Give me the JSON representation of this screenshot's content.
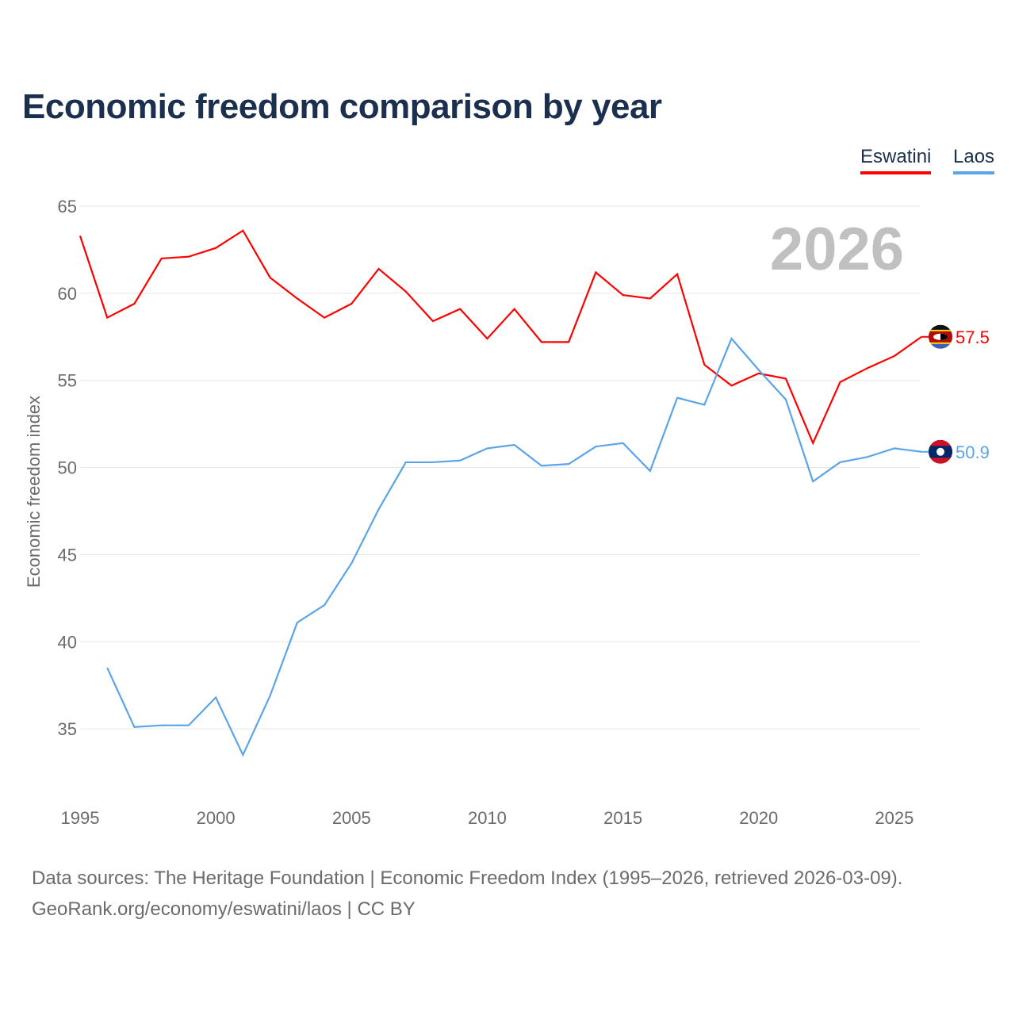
{
  "chart_data": {
    "type": "line",
    "title": "Economic freedom comparison by year",
    "xlabel": "",
    "ylabel": "Economic freedom index",
    "xlim": [
      1995,
      2026
    ],
    "ylim": [
      31,
      65
    ],
    "x_ticks": [
      1995,
      2000,
      2005,
      2010,
      2015,
      2020,
      2025
    ],
    "y_ticks": [
      35,
      40,
      45,
      50,
      55,
      60,
      65
    ],
    "grid": true,
    "legend_position": "top-right",
    "watermark_year": "2026",
    "series": [
      {
        "name": "Eswatini",
        "color": "#ff0000",
        "end_label": "57.5",
        "x": [
          1995,
          1996,
          1997,
          1998,
          1999,
          2000,
          2001,
          2002,
          2003,
          2004,
          2005,
          2006,
          2007,
          2008,
          2009,
          2010,
          2011,
          2012,
          2013,
          2014,
          2015,
          2016,
          2017,
          2018,
          2019,
          2020,
          2021,
          2022,
          2023,
          2024,
          2025,
          2026
        ],
        "values": [
          63.3,
          58.6,
          59.4,
          62.0,
          62.1,
          62.6,
          63.6,
          60.9,
          59.7,
          58.6,
          59.4,
          61.4,
          60.1,
          58.4,
          59.1,
          57.4,
          59.1,
          57.2,
          57.2,
          61.2,
          59.9,
          59.7,
          61.1,
          55.9,
          54.7,
          55.4,
          55.1,
          51.4,
          54.9,
          55.7,
          56.4,
          57.5
        ]
      },
      {
        "name": "Laos",
        "color": "#5ba4e8",
        "end_label": "50.9",
        "x": [
          1996,
          1997,
          1998,
          1999,
          2000,
          2001,
          2002,
          2003,
          2004,
          2005,
          2006,
          2007,
          2008,
          2009,
          2010,
          2011,
          2012,
          2013,
          2014,
          2015,
          2016,
          2017,
          2018,
          2019,
          2020,
          2021,
          2022,
          2023,
          2024,
          2025,
          2026
        ],
        "values": [
          38.5,
          35.1,
          35.2,
          35.2,
          36.8,
          33.5,
          36.9,
          41.1,
          42.1,
          44.5,
          47.6,
          50.3,
          50.3,
          50.4,
          51.1,
          51.3,
          50.1,
          50.2,
          51.2,
          51.4,
          49.8,
          54.0,
          53.6,
          57.4,
          55.6,
          53.9,
          49.2,
          50.3,
          50.6,
          51.1,
          50.9
        ]
      }
    ]
  },
  "legend": {
    "eswatini": "Eswatini",
    "laos": "Laos"
  },
  "source": {
    "line1": "Data sources: The Heritage Foundation | Economic Freedom Index (1995–2026, retrieved 2026-03-09).",
    "line2": "GeoRank.org/economy/eswatini/laos | CC BY"
  }
}
